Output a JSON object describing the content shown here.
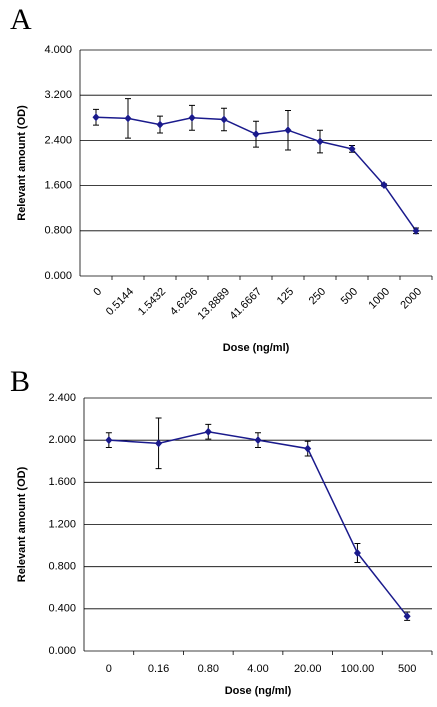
{
  "chart_data": [
    {
      "type": "line",
      "panel": "A",
      "y_label": "Relevant amount (OD)",
      "x_label": "Dose (ng/ml)",
      "categories": [
        "0",
        "0.5144",
        "1.5432",
        "4.6296",
        "13.8889",
        "41.6667",
        "125",
        "250",
        "500",
        "1000",
        "2000"
      ],
      "series": [
        {
          "color": "#1a1a8c",
          "values": [
            2.81,
            2.79,
            2.68,
            2.8,
            2.77,
            2.51,
            2.58,
            2.38,
            2.25,
            1.61,
            0.8
          ],
          "errors": [
            0.14,
            0.35,
            0.15,
            0.22,
            0.2,
            0.23,
            0.35,
            0.2,
            0.06,
            0.02,
            0.05
          ]
        }
      ],
      "ylim": [
        0,
        4
      ],
      "yticks": [
        {
          "value": 0,
          "label": "0.000"
        },
        {
          "value": 0.8,
          "label": "0.800"
        },
        {
          "value": 1.6,
          "label": "1.600"
        },
        {
          "value": 2.4,
          "label": "2.400"
        },
        {
          "value": 3.2,
          "label": "3.200"
        },
        {
          "value": 4,
          "label": "4.000"
        }
      ],
      "grid": true,
      "rotate_x_labels": true
    },
    {
      "type": "line",
      "panel": "B",
      "y_label": "Relevant amount (OD)",
      "x_label": "Dose (ng/ml)",
      "categories": [
        "0",
        "0.16",
        "0.80",
        "4.00",
        "20.00",
        "100.00",
        "500"
      ],
      "series": [
        {
          "color": "#1a1a8c",
          "values": [
            2.0,
            1.97,
            2.08,
            2.0,
            1.92,
            0.93,
            0.33
          ],
          "errors": [
            0.07,
            0.24,
            0.07,
            0.07,
            0.07,
            0.09,
            0.04
          ]
        }
      ],
      "ylim": [
        0,
        2.4
      ],
      "yticks": [
        {
          "value": 0,
          "label": "0.000"
        },
        {
          "value": 0.4,
          "label": "0.400"
        },
        {
          "value": 0.8,
          "label": "0.800"
        },
        {
          "value": 1.2,
          "label": "1.200"
        },
        {
          "value": 1.6,
          "label": "1.600"
        },
        {
          "value": 2.0,
          "label": "2.000"
        },
        {
          "value": 2.4,
          "label": "2.400"
        }
      ],
      "grid": true,
      "rotate_x_labels": false
    }
  ]
}
